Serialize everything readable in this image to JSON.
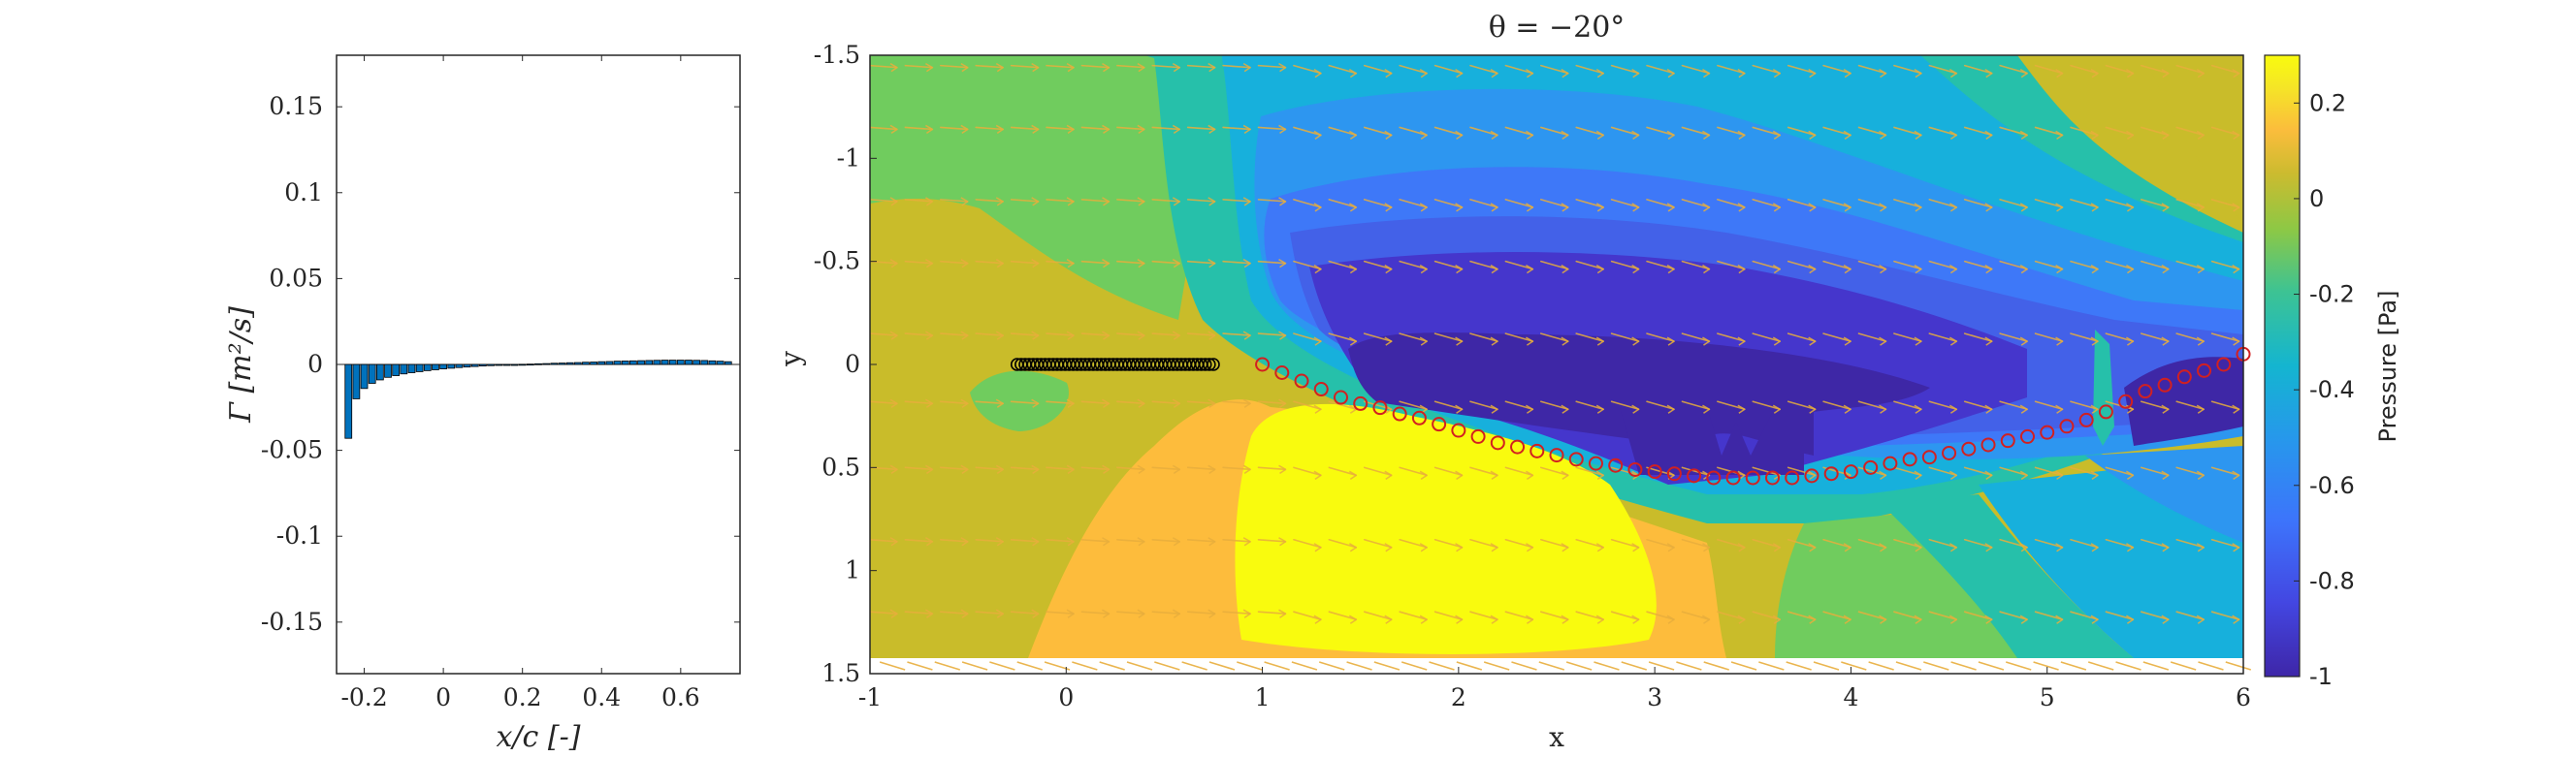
{
  "chart_data": [
    {
      "type": "bar",
      "name": "circulation",
      "xlabel": "x/c [-]",
      "ylabel": "Γ [m²/s]",
      "xlim": [
        -0.27,
        0.75
      ],
      "ylim": [
        -0.18,
        0.18
      ],
      "xticks": [
        -0.2,
        0,
        0.2,
        0.4,
        0.6
      ],
      "xtick_labels": [
        "-0.2",
        "0",
        "0.2",
        "0.4",
        "0.6"
      ],
      "yticks": [
        0.15,
        0.1,
        0.05,
        0,
        -0.05,
        -0.1,
        -0.15
      ],
      "ytick_labels": [
        "0.15",
        "0.1",
        "0.05",
        "0",
        "-0.05",
        "-0.1",
        "-0.15"
      ],
      "bar_color": "#0072BD",
      "x": [
        -0.24,
        -0.22,
        -0.2,
        -0.18,
        -0.16,
        -0.14,
        -0.12,
        -0.1,
        -0.08,
        -0.06,
        -0.04,
        -0.02,
        0,
        0.02,
        0.04,
        0.06,
        0.08,
        0.1,
        0.12,
        0.14,
        0.16,
        0.18,
        0.2,
        0.22,
        0.24,
        0.26,
        0.28,
        0.3,
        0.32,
        0.34,
        0.36,
        0.38,
        0.4,
        0.42,
        0.44,
        0.46,
        0.48,
        0.5,
        0.52,
        0.54,
        0.56,
        0.58,
        0.6,
        0.62,
        0.64,
        0.66,
        0.68,
        0.7,
        0.72
      ],
      "values": [
        -0.043,
        -0.02,
        -0.014,
        -0.011,
        -0.009,
        -0.0075,
        -0.0065,
        -0.0055,
        -0.0048,
        -0.0042,
        -0.0036,
        -0.0031,
        -0.0026,
        -0.0022,
        -0.0018,
        -0.0015,
        -0.0012,
        -0.0009,
        -0.0007,
        -0.0005,
        -0.0003,
        -0.0001,
        0.0001,
        0.0002,
        0.0004,
        0.0005,
        0.0007,
        0.0008,
        0.001,
        0.0011,
        0.0013,
        0.0014,
        0.0016,
        0.0017,
        0.0019,
        0.002,
        0.0021,
        0.0022,
        0.0023,
        0.0024,
        0.0025,
        0.0025,
        0.0025,
        0.0025,
        0.0024,
        0.0023,
        0.0021,
        0.0019,
        0.0016
      ]
    },
    {
      "type": "heatmap",
      "name": "pressure-field",
      "title": "θ = −20°",
      "xlabel": "x",
      "ylabel": "y",
      "xlim": [
        -1,
        6
      ],
      "ylim": [
        -1.5,
        1.5
      ],
      "y_reversed": true,
      "xticks": [
        -1,
        0,
        1,
        2,
        3,
        4,
        5,
        6
      ],
      "xtick_labels": [
        "-1",
        "0",
        "1",
        "2",
        "3",
        "4",
        "5",
        "6"
      ],
      "yticks": [
        -1.5,
        -1,
        -0.5,
        0,
        0.5,
        1,
        1.5
      ],
      "ytick_labels": [
        "-1.5",
        "-1",
        "-0.5",
        "0",
        "0.5",
        "1",
        "1.5"
      ],
      "colorbar": {
        "label": "Pressure [Pa]",
        "range": [
          -1,
          0.3
        ],
        "ticks": [
          0.2,
          0,
          -0.2,
          -0.4,
          -0.6,
          -0.8,
          -1
        ],
        "tick_labels": [
          "0.2",
          "0",
          "-0.2",
          "-0.4",
          "-0.6",
          "-0.8",
          "-1"
        ]
      },
      "colors": {
        "yellow": "#F9FB0E",
        "orange": "#FDBC3C",
        "olive": "#C9BC2A",
        "green": "#70CC5E",
        "teal": "#26C0AA",
        "cyan": "#17B0DC",
        "lightblue": "#2D96F0",
        "blue": "#3E78F8",
        "midblue": "#4361E8",
        "darkblue": "#4536CC",
        "purple": "#3E27A6",
        "arrow": "#E8AE3C",
        "wake_marker": "#D22020",
        "body_marker": "#000000"
      },
      "body_points": {
        "x_start": -0.25,
        "x_end": 0.75,
        "y": 0,
        "count": 50
      },
      "wake_points": [
        [
          1.0,
          0.0
        ],
        [
          1.1,
          0.04
        ],
        [
          1.2,
          0.08
        ],
        [
          1.3,
          0.12
        ],
        [
          1.4,
          0.16
        ],
        [
          1.5,
          0.19
        ],
        [
          1.6,
          0.21
        ],
        [
          1.7,
          0.24
        ],
        [
          1.8,
          0.26
        ],
        [
          1.9,
          0.29
        ],
        [
          2.0,
          0.32
        ],
        [
          2.1,
          0.35
        ],
        [
          2.2,
          0.38
        ],
        [
          2.3,
          0.4
        ],
        [
          2.4,
          0.42
        ],
        [
          2.5,
          0.44
        ],
        [
          2.6,
          0.46
        ],
        [
          2.7,
          0.48
        ],
        [
          2.8,
          0.49
        ],
        [
          2.9,
          0.51
        ],
        [
          3.0,
          0.52
        ],
        [
          3.1,
          0.53
        ],
        [
          3.2,
          0.54
        ],
        [
          3.3,
          0.55
        ],
        [
          3.4,
          0.55
        ],
        [
          3.5,
          0.55
        ],
        [
          3.6,
          0.55
        ],
        [
          3.7,
          0.55
        ],
        [
          3.8,
          0.54
        ],
        [
          3.9,
          0.53
        ],
        [
          4.0,
          0.52
        ],
        [
          4.1,
          0.5
        ],
        [
          4.2,
          0.48
        ],
        [
          4.3,
          0.46
        ],
        [
          4.4,
          0.45
        ],
        [
          4.5,
          0.43
        ],
        [
          4.6,
          0.41
        ],
        [
          4.7,
          0.39
        ],
        [
          4.8,
          0.37
        ],
        [
          4.9,
          0.35
        ],
        [
          5.0,
          0.33
        ],
        [
          5.1,
          0.3
        ],
        [
          5.2,
          0.27
        ],
        [
          5.3,
          0.23
        ],
        [
          5.4,
          0.18
        ],
        [
          5.5,
          0.13
        ],
        [
          5.6,
          0.1
        ],
        [
          5.7,
          0.06
        ],
        [
          5.8,
          0.03
        ],
        [
          5.9,
          0.0
        ],
        [
          6.0,
          -0.05
        ]
      ]
    }
  ]
}
